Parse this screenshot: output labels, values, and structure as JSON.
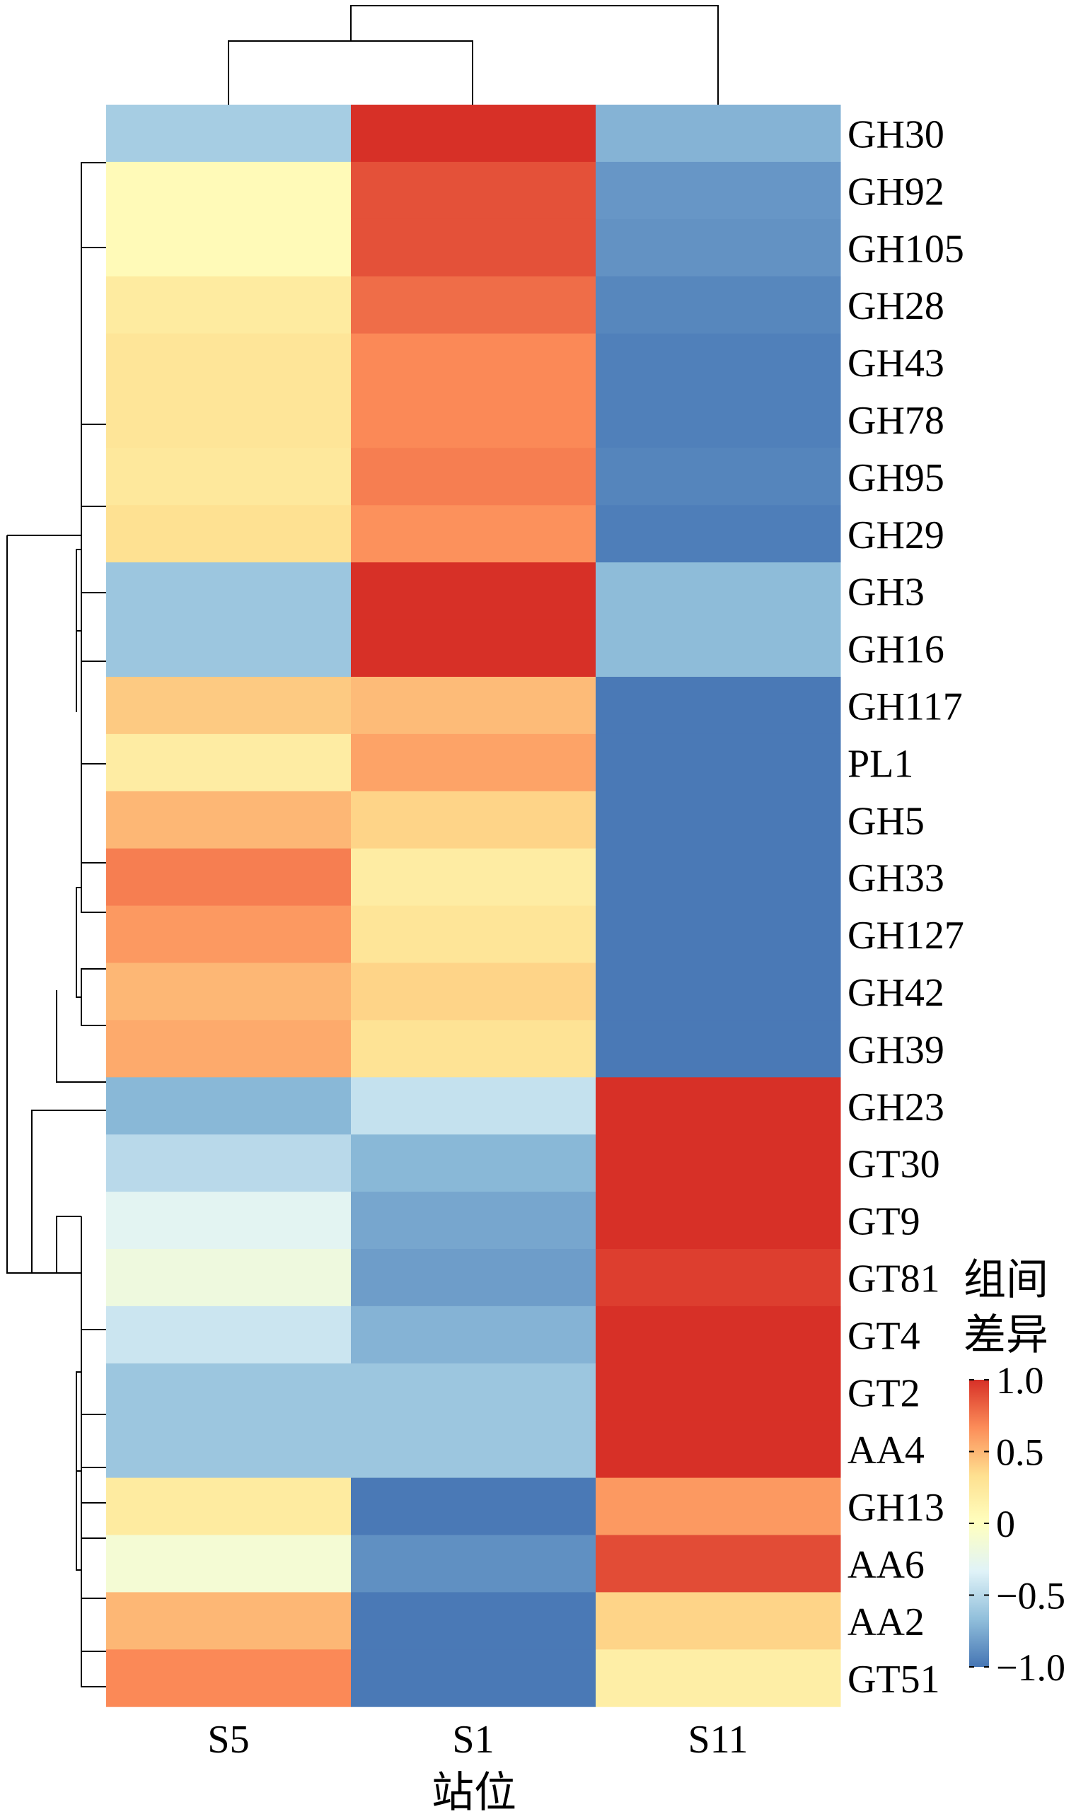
{
  "chart_data": {
    "type": "heatmap",
    "xlabel": "站位",
    "columns": [
      "S5",
      "S1",
      "S11"
    ],
    "rows": [
      "GH30",
      "GH92",
      "GH105",
      "GH28",
      "GH43",
      "GH78",
      "GH95",
      "GH29",
      "GH3",
      "GH16",
      "GH117",
      "PL1",
      "GH5",
      "GH33",
      "GH127",
      "GH42",
      "GH39",
      "GH23",
      "GT30",
      "GT9",
      "GT81",
      "GT4",
      "GT2",
      "AA4",
      "GH13",
      "AA6",
      "AA2",
      "GT51"
    ],
    "values": [
      [
        -0.58,
        1.0,
        -0.72
      ],
      [
        0.05,
        0.88,
        -0.85
      ],
      [
        0.05,
        0.88,
        -0.87
      ],
      [
        0.22,
        0.78,
        -0.92
      ],
      [
        0.28,
        0.68,
        -0.95
      ],
      [
        0.28,
        0.68,
        -0.95
      ],
      [
        0.25,
        0.72,
        -0.93
      ],
      [
        0.32,
        0.65,
        -0.96
      ],
      [
        -0.62,
        1.0,
        -0.68
      ],
      [
        -0.62,
        1.0,
        -0.68
      ],
      [
        0.42,
        0.48,
        -0.98
      ],
      [
        0.2,
        0.58,
        -0.98
      ],
      [
        0.5,
        0.38,
        -0.98
      ],
      [
        0.72,
        0.2,
        -0.98
      ],
      [
        0.62,
        0.28,
        -0.98
      ],
      [
        0.5,
        0.38,
        -0.98
      ],
      [
        0.55,
        0.3,
        -0.98
      ],
      [
        -0.7,
        -0.45,
        1.0
      ],
      [
        -0.5,
        -0.7,
        1.0
      ],
      [
        -0.3,
        -0.78,
        1.0
      ],
      [
        -0.18,
        -0.82,
        0.95
      ],
      [
        -0.42,
        -0.72,
        1.0
      ],
      [
        -0.62,
        -0.62,
        1.0
      ],
      [
        -0.62,
        -0.62,
        1.0
      ],
      [
        0.22,
        -0.98,
        0.62
      ],
      [
        -0.12,
        -0.88,
        0.9
      ],
      [
        0.5,
        -0.98,
        0.38
      ],
      [
        0.68,
        -0.98,
        0.18
      ]
    ],
    "legend": {
      "title_lines": [
        "组间",
        "差异"
      ],
      "ticks": [
        "1.0",
        "0.5",
        "0",
        "−0.5",
        "−1.0"
      ],
      "tick_values": [
        1.0,
        0.5,
        0,
        -0.5,
        -1.0
      ],
      "range": [
        -1.0,
        1.0
      ]
    },
    "color_stops": [
      "#4575b4",
      "#91bfdb",
      "#e0f3f8",
      "#ffffbf",
      "#fee090",
      "#fc8d59",
      "#d73027"
    ],
    "dendrogram_top": "S1 and S5 joined first, then S11",
    "dendrogram_left": "hierarchical clustering of rows"
  }
}
